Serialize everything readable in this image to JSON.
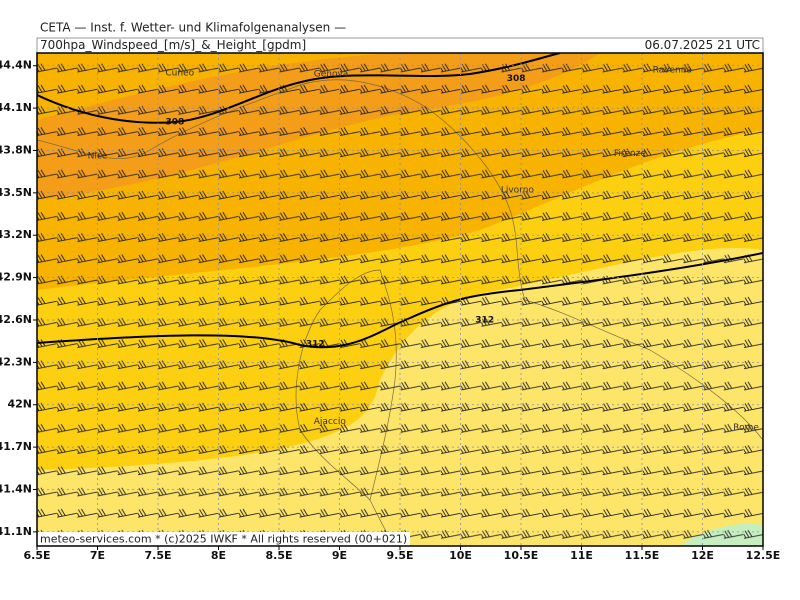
{
  "header": {
    "title": "CETA — Inst. f. Wetter- und Klimafolgenanalysen —",
    "product": "700hpa_Windspeed_[m/s]_&_Height_[gpdm]",
    "valid": "06.07.2025 21 UTC"
  },
  "map": {
    "xlim": [
      6.5,
      12.5
    ],
    "ylim": [
      41.0,
      44.49
    ],
    "xticks": [
      {
        "value": 6.5,
        "label": "6.5E"
      },
      {
        "value": 7,
        "label": "7E"
      },
      {
        "value": 7.5,
        "label": "7.5E"
      },
      {
        "value": 8,
        "label": "8E"
      },
      {
        "value": 8.5,
        "label": "8.5E"
      },
      {
        "value": 9,
        "label": "9E"
      },
      {
        "value": 9.5,
        "label": "9.5E"
      },
      {
        "value": 10,
        "label": "10E"
      },
      {
        "value": 10.5,
        "label": "10.5E"
      },
      {
        "value": 11,
        "label": "11E"
      },
      {
        "value": 11.5,
        "label": "11.5E"
      },
      {
        "value": 12,
        "label": "12E"
      },
      {
        "value": 12.5,
        "label": "12.5E"
      }
    ],
    "yticks": [
      {
        "value": 44.4,
        "label": "44.4N"
      },
      {
        "value": 44.1,
        "label": "44.1N"
      },
      {
        "value": 43.8,
        "label": "43.8N"
      },
      {
        "value": 43.5,
        "label": "43.5N"
      },
      {
        "value": 43.2,
        "label": "43.2N"
      },
      {
        "value": 42.9,
        "label": "42.9N"
      },
      {
        "value": 42.6,
        "label": "42.6N"
      },
      {
        "value": 42.3,
        "label": "42.3N"
      },
      {
        "value": 42,
        "label": "42N"
      },
      {
        "value": 41.7,
        "label": "41.7N"
      },
      {
        "value": 41.4,
        "label": "41.4N"
      },
      {
        "value": 41.1,
        "label": "41.1N"
      }
    ],
    "places": [
      {
        "name": "Genova",
        "lon": 8.93,
        "lat": 44.34
      },
      {
        "name": "Cuneo",
        "lon": 7.68,
        "lat": 44.35
      },
      {
        "name": "Nice",
        "lon": 7.0,
        "lat": 43.76
      },
      {
        "name": "Firenze",
        "lon": 11.4,
        "lat": 43.78
      },
      {
        "name": "Livorno",
        "lon": 10.47,
        "lat": 43.52
      },
      {
        "name": "Ajaccio",
        "lon": 8.92,
        "lat": 41.88
      },
      {
        "name": "Rome",
        "lon": 12.36,
        "lat": 41.84
      },
      {
        "name": "Ravenna",
        "lon": 11.75,
        "lat": 44.37
      }
    ],
    "contour_labels": [
      {
        "text": "308",
        "lon": 10.46,
        "lat": 44.31
      },
      {
        "text": "308",
        "lon": 7.64,
        "lat": 44.0
      },
      {
        "text": "312",
        "lon": 8.8,
        "lat": 42.43
      },
      {
        "text": "312",
        "lon": 10.2,
        "lat": 42.6
      }
    ]
  },
  "footer": "meteo-services.com * (c)2025 IWKF * All rights reserved (00+021)"
}
